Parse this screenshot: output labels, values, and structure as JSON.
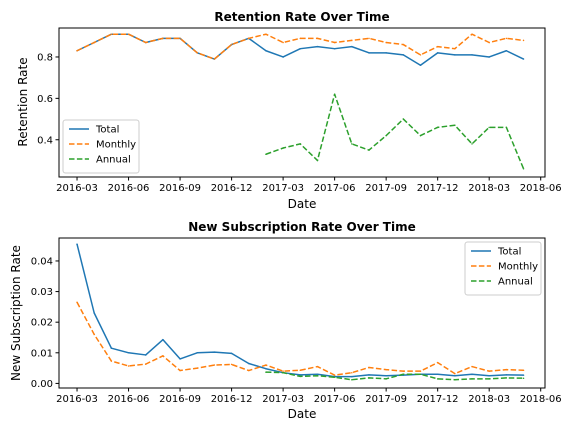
{
  "chart_data": [
    {
      "type": "line",
      "title": "Retention Rate Over Time",
      "xlabel": "Date",
      "ylabel": "Retention Rate",
      "x_ticks": [
        "2016-03",
        "2016-06",
        "2016-09",
        "2016-12",
        "2017-03",
        "2017-06",
        "2017-09",
        "2017-12",
        "2018-03",
        "2018-06"
      ],
      "y_ticks": [
        "0.4",
        "0.6",
        "0.8"
      ],
      "ylim": [
        0.22,
        0.94
      ],
      "legend_position": "lower-left",
      "x": [
        "2016-03",
        "2016-04",
        "2016-05",
        "2016-06",
        "2016-07",
        "2016-08",
        "2016-09",
        "2016-10",
        "2016-11",
        "2016-12",
        "2017-01",
        "2017-02",
        "2017-03",
        "2017-04",
        "2017-05",
        "2017-06",
        "2017-07",
        "2017-08",
        "2017-09",
        "2017-10",
        "2017-11",
        "2017-12",
        "2018-01",
        "2018-02",
        "2018-03",
        "2018-04",
        "2018-05"
      ],
      "series": [
        {
          "name": "Total",
          "color": "#1f77b4",
          "dash": "solid",
          "values": [
            0.83,
            0.87,
            0.91,
            0.91,
            0.87,
            0.89,
            0.89,
            0.82,
            0.79,
            0.86,
            0.89,
            0.83,
            0.8,
            0.84,
            0.85,
            0.84,
            0.85,
            0.82,
            0.82,
            0.81,
            0.76,
            0.82,
            0.81,
            0.81,
            0.8,
            0.83,
            0.79
          ]
        },
        {
          "name": "Monthly",
          "color": "#ff7f0e",
          "dash": "dashed",
          "values": [
            0.83,
            0.87,
            0.91,
            0.91,
            0.87,
            0.89,
            0.89,
            0.82,
            0.79,
            0.86,
            0.89,
            0.91,
            0.87,
            0.89,
            0.89,
            0.87,
            0.88,
            0.89,
            0.87,
            0.86,
            0.81,
            0.85,
            0.84,
            0.91,
            0.87,
            0.89,
            0.88
          ]
        },
        {
          "name": "Annual",
          "color": "#2ca02c",
          "dash": "dashed",
          "values": [
            null,
            null,
            null,
            null,
            null,
            null,
            null,
            null,
            null,
            null,
            null,
            0.33,
            0.36,
            0.38,
            0.3,
            0.62,
            0.38,
            0.35,
            0.42,
            0.5,
            0.42,
            0.46,
            0.47,
            0.38,
            0.46,
            0.46,
            0.26
          ]
        }
      ]
    },
    {
      "type": "line",
      "title": "New Subscription Rate Over Time",
      "xlabel": "Date",
      "ylabel": "New Subscription Rate",
      "x_ticks": [
        "2016-03",
        "2016-06",
        "2016-09",
        "2016-12",
        "2017-03",
        "2017-06",
        "2017-09",
        "2017-12",
        "2018-03",
        "2018-06"
      ],
      "y_ticks": [
        "0.00",
        "0.01",
        "0.02",
        "0.03",
        "0.04"
      ],
      "ylim": [
        -0.0015,
        0.0475
      ],
      "legend_position": "upper-right",
      "x": [
        "2016-03",
        "2016-04",
        "2016-05",
        "2016-06",
        "2016-07",
        "2016-08",
        "2016-09",
        "2016-10",
        "2016-11",
        "2016-12",
        "2017-01",
        "2017-02",
        "2017-03",
        "2017-04",
        "2017-05",
        "2017-06",
        "2017-07",
        "2017-08",
        "2017-09",
        "2017-10",
        "2017-11",
        "2017-12",
        "2018-01",
        "2018-02",
        "2018-03",
        "2018-04",
        "2018-05"
      ],
      "series": [
        {
          "name": "Total",
          "color": "#1f77b4",
          "dash": "solid",
          "values": [
            0.0455,
            0.023,
            0.0115,
            0.01,
            0.0093,
            0.0143,
            0.008,
            0.01,
            0.0102,
            0.0098,
            0.0065,
            0.0048,
            0.0035,
            0.0028,
            0.003,
            0.0022,
            0.0022,
            0.0028,
            0.0025,
            0.0027,
            0.003,
            0.003,
            0.0025,
            0.003,
            0.0025,
            0.0028,
            0.0027
          ]
        },
        {
          "name": "Monthly",
          "color": "#ff7f0e",
          "dash": "dashed",
          "values": [
            0.0265,
            0.016,
            0.0073,
            0.0057,
            0.0063,
            0.009,
            0.0042,
            0.005,
            0.006,
            0.0062,
            0.0042,
            0.006,
            0.004,
            0.0043,
            0.0055,
            0.0027,
            0.0035,
            0.0052,
            0.0045,
            0.004,
            0.004,
            0.0068,
            0.0032,
            0.0055,
            0.004,
            0.0045,
            0.0043
          ]
        },
        {
          "name": "Annual",
          "color": "#2ca02c",
          "dash": "dashed",
          "values": [
            null,
            null,
            null,
            null,
            null,
            null,
            null,
            null,
            null,
            null,
            null,
            0.0037,
            0.0035,
            0.0023,
            0.0025,
            0.002,
            0.0012,
            0.0018,
            0.0015,
            0.003,
            0.003,
            0.0015,
            0.0012,
            0.0015,
            0.0015,
            0.0018,
            0.0017
          ]
        }
      ]
    }
  ]
}
